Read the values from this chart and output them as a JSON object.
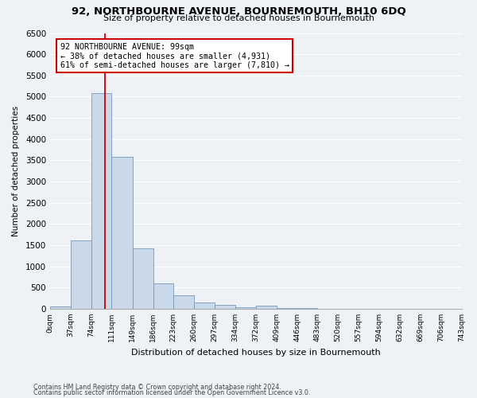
{
  "title": "92, NORTHBOURNE AVENUE, BOURNEMOUTH, BH10 6DQ",
  "subtitle": "Size of property relative to detached houses in Bournemouth",
  "xlabel": "Distribution of detached houses by size in Bournemouth",
  "ylabel": "Number of detached properties",
  "bar_color": "#c9d9ea",
  "bar_edge_color": "#7799bb",
  "background_color": "#eef2f7",
  "grid_color": "#ffffff",
  "bin_edges": [
    0,
    37,
    74,
    111,
    149,
    186,
    223,
    260,
    297,
    334,
    372,
    409,
    446,
    483,
    520,
    557,
    594,
    632,
    669,
    706,
    743
  ],
  "bin_labels": [
    "0sqm",
    "37sqm",
    "74sqm",
    "111sqm",
    "149sqm",
    "186sqm",
    "223sqm",
    "260sqm",
    "297sqm",
    "334sqm",
    "372sqm",
    "409sqm",
    "446sqm",
    "483sqm",
    "520sqm",
    "557sqm",
    "594sqm",
    "632sqm",
    "669sqm",
    "706sqm",
    "743sqm"
  ],
  "bar_heights": [
    50,
    1620,
    5080,
    3580,
    1420,
    590,
    310,
    140,
    100,
    30,
    70,
    20,
    20,
    0,
    0,
    0,
    0,
    0,
    0,
    0
  ],
  "ylim": [
    0,
    6500
  ],
  "yticks": [
    0,
    500,
    1000,
    1500,
    2000,
    2500,
    3000,
    3500,
    4000,
    4500,
    5000,
    5500,
    6000,
    6500
  ],
  "property_line_x": 99,
  "property_line_color": "#cc0000",
  "annotation_title": "92 NORTHBOURNE AVENUE: 99sqm",
  "annotation_line1": "← 38% of detached houses are smaller (4,931)",
  "annotation_line2": "61% of semi-detached houses are larger (7,810) →",
  "annotation_box_color": "#cc0000",
  "footer1": "Contains HM Land Registry data © Crown copyright and database right 2024.",
  "footer2": "Contains public sector information licensed under the Open Government Licence v3.0."
}
